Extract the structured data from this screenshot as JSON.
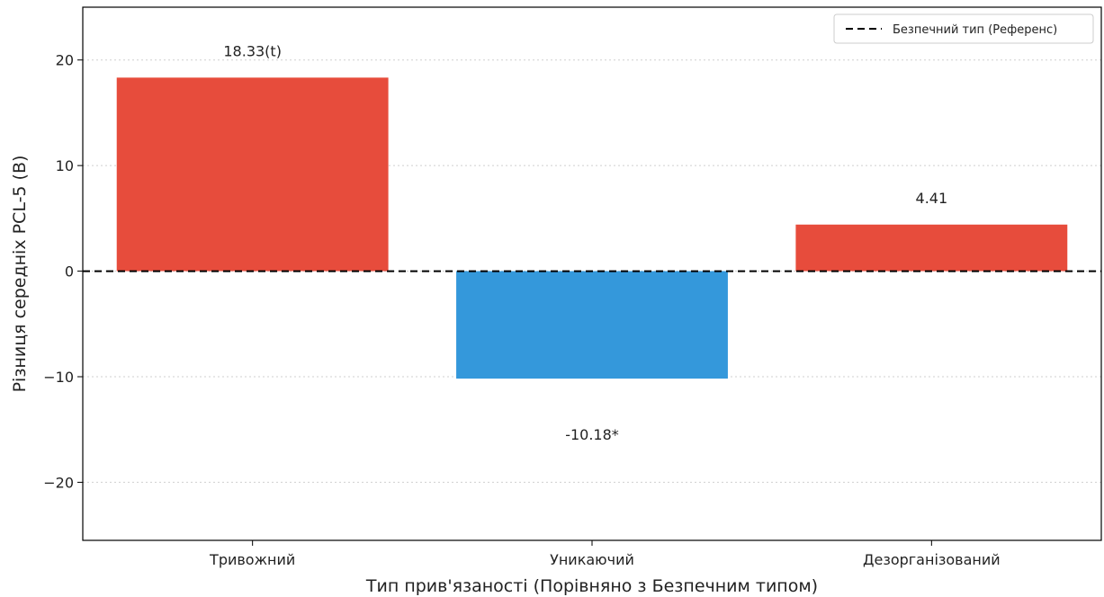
{
  "chart_data": {
    "type": "bar",
    "categories": [
      "Тривожний",
      "Уникаючий",
      "Дезорганізований"
    ],
    "values": [
      18.33,
      -10.18,
      4.41
    ],
    "value_labels": [
      "18.33(t)",
      "-10.18*",
      "4.41"
    ],
    "bar_colors": [
      "#e74c3c",
      "#3498db",
      "#e74c3c"
    ],
    "title": "",
    "xlabel": "Тип прив'язаності (Порівняно з Безпечним типом)",
    "ylabel": "Різниця середніх PCL-5 (B)",
    "ylim": [
      -25.5,
      25
    ],
    "yticks": [
      20,
      10,
      0,
      -10,
      -20
    ],
    "ytick_labels": [
      "20",
      "10",
      "0",
      "−10",
      "−20"
    ],
    "reference_line": {
      "y": 0,
      "style": "dashed",
      "color": "#000000"
    },
    "grid": "horizontal-dotted",
    "legend": {
      "position": "top-right",
      "entries": [
        {
          "label": "Безпечний тип (Референс)",
          "style": "dashed-line"
        }
      ]
    }
  }
}
